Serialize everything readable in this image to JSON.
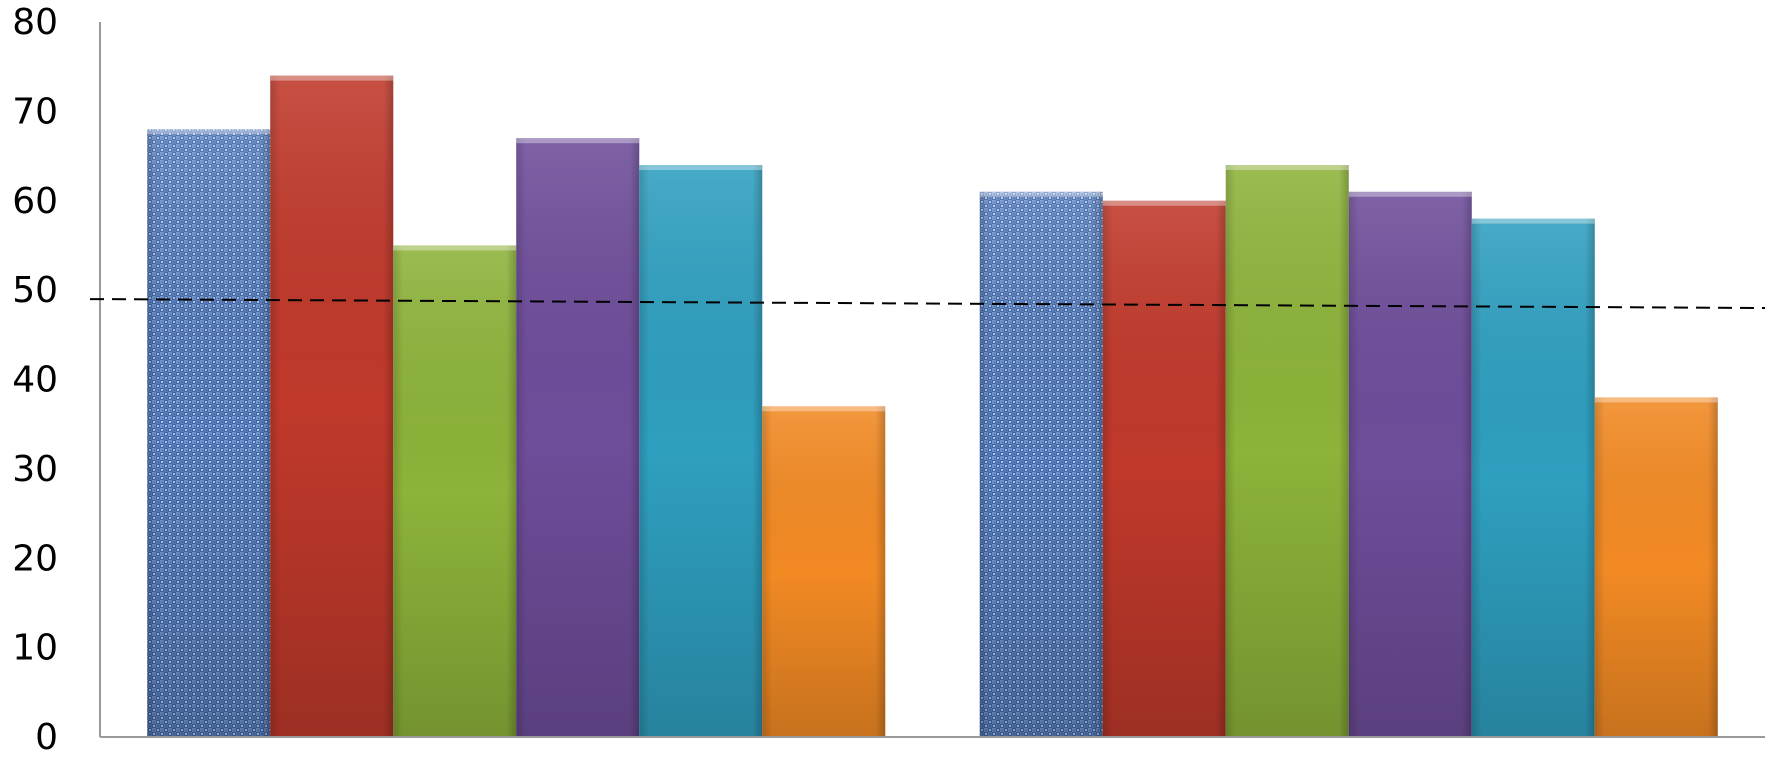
{
  "chart_data": {
    "type": "bar",
    "categories": [
      "",
      ""
    ],
    "series": [
      {
        "values": [
          68,
          61
        ],
        "color": "#4f81bd",
        "pattern": "textured-denim"
      },
      {
        "values": [
          74,
          60
        ],
        "color": "#c0392b"
      },
      {
        "values": [
          55,
          64
        ],
        "color": "#8db33a"
      },
      {
        "values": [
          67,
          61
        ],
        "color": "#6e4d9a"
      },
      {
        "values": [
          64,
          58
        ],
        "color": "#2f9fc0"
      },
      {
        "values": [
          37,
          38
        ],
        "color": "#f28a24"
      }
    ],
    "reference_line": {
      "style": "dashed",
      "color": "#000000",
      "start": 49,
      "end": 48
    },
    "ylim": [
      0,
      80
    ],
    "y_ticks": [
      "0",
      "10",
      "20",
      "30",
      "40",
      "50",
      "60",
      "70",
      "80"
    ],
    "title": "",
    "xlabel": "",
    "ylabel": "",
    "grid": false,
    "legend": "none"
  }
}
